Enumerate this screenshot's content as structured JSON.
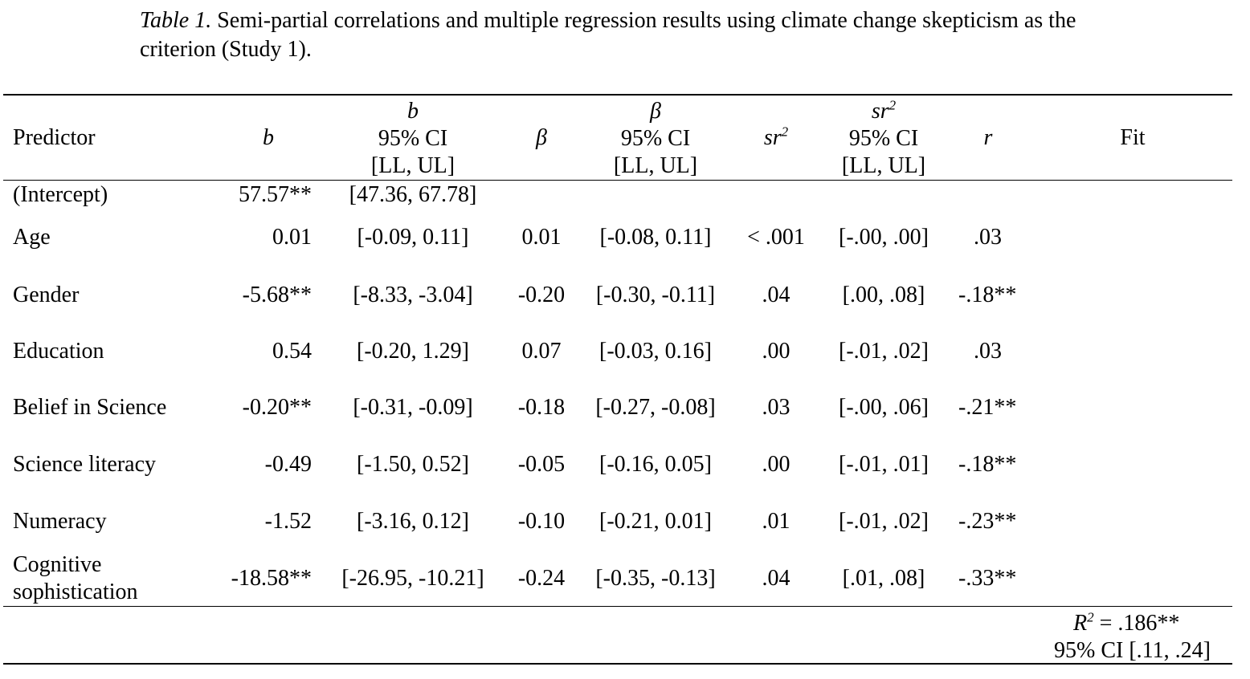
{
  "caption": {
    "label": "Table 1.",
    "text": " Semi-partial correlations and multiple regression results using climate change skepticism as the criterion (Study 1)."
  },
  "headers": {
    "predictor": "Predictor",
    "b": "b",
    "b_ci_sym": "b",
    "ci": "95% CI",
    "llul": "[LL, UL]",
    "beta": "β",
    "beta_ci_sym": "β",
    "sr2_base": "sr",
    "sr2_sup": "2",
    "r": "r",
    "fit": "Fit"
  },
  "rows": [
    {
      "predictor": "(Intercept)",
      "b": "57.57**",
      "b_ci": "[47.36, 67.78]",
      "beta": "",
      "beta_ci": "",
      "sr2": "",
      "sr2_ci": "",
      "r": ""
    },
    {
      "predictor": "Age",
      "b": "0.01",
      "b_ci": "[-0.09, 0.11]",
      "beta": "0.01",
      "beta_ci": "[-0.08, 0.11]",
      "sr2": "< .001",
      "sr2_ci": "[-.00, .00]",
      "r": ".03"
    },
    {
      "predictor": "Gender",
      "b": "-5.68**",
      "b_ci": "[-8.33, -3.04]",
      "beta": "-0.20",
      "beta_ci": "[-0.30, -0.11]",
      "sr2": ".04",
      "sr2_ci": "[.00, .08]",
      "r": "-.18**"
    },
    {
      "predictor": "Education",
      "b": "0.54",
      "b_ci": "[-0.20, 1.29]",
      "beta": "0.07",
      "beta_ci": "[-0.03, 0.16]",
      "sr2": ".00",
      "sr2_ci": "[-.01, .02]",
      "r": ".03"
    },
    {
      "predictor": "Belief in Science",
      "b": "-0.20**",
      "b_ci": "[-0.31, -0.09]",
      "beta": "-0.18",
      "beta_ci": "[-0.27, -0.08]",
      "sr2": ".03",
      "sr2_ci": "[-.00, .06]",
      "r": "-.21**"
    },
    {
      "predictor": "Science literacy",
      "b": "-0.49",
      "b_ci": "[-1.50, 0.52]",
      "beta": "-0.05",
      "beta_ci": "[-0.16, 0.05]",
      "sr2": ".00",
      "sr2_ci": "[-.01, .01]",
      "r": "-.18**"
    },
    {
      "predictor": "Numeracy",
      "b": "-1.52",
      "b_ci": "[-3.16, 0.12]",
      "beta": "-0.10",
      "beta_ci": "[-0.21, 0.01]",
      "sr2": ".01",
      "sr2_ci": "[-.01, .02]",
      "r": "-.23**"
    },
    {
      "predictor": "Cognitive sophistication",
      "predictor_lines": [
        "Cognitive",
        "sophistication"
      ],
      "b": "-18.58**",
      "b_ci": "[-26.95, -10.21]",
      "beta": "-0.24",
      "beta_ci": "[-0.35, -0.13]",
      "sr2": ".04",
      "sr2_ci": "[.01, .08]",
      "r": "-.33**"
    }
  ],
  "fit": {
    "r2_base": "R",
    "r2_sup": "2",
    "r2_value": " = .186**",
    "ci": "95% CI [.11, .24]"
  }
}
